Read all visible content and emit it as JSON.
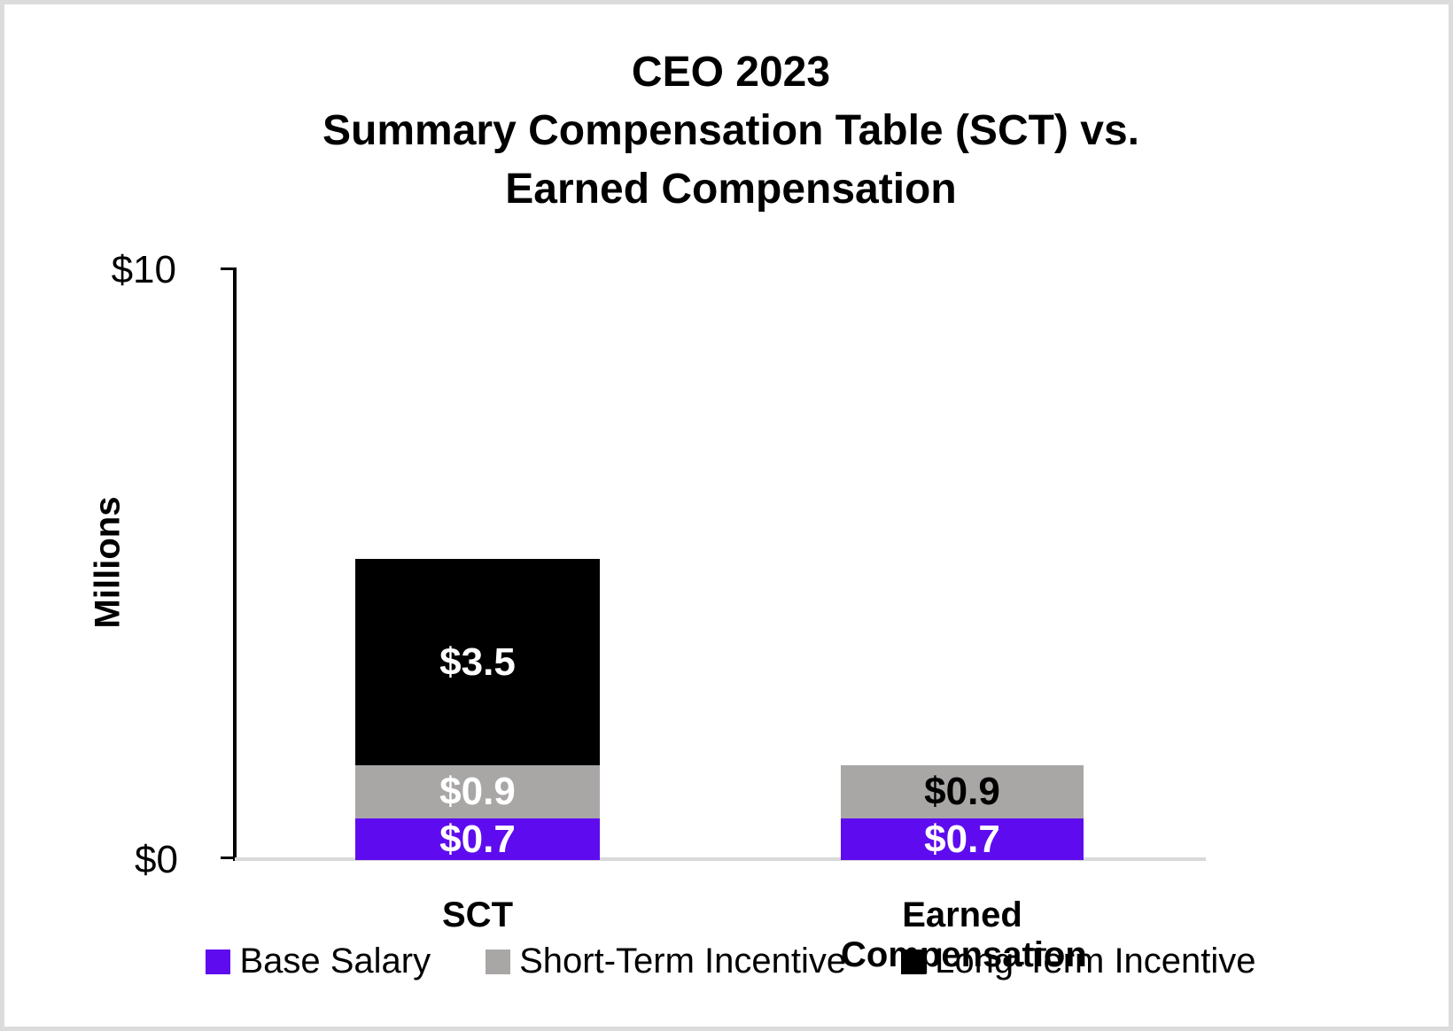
{
  "page": {
    "background": "#FFFFFF",
    "border_color": "#DCDCDC"
  },
  "chart_data": {
    "type": "bar",
    "stacked": true,
    "title_lines": [
      "CEO 2023",
      "Summary Compensation Table (SCT) vs.",
      "Earned Compensation"
    ],
    "ylabel": "Millions",
    "xlabel": "",
    "ylim": [
      0,
      10
    ],
    "yticks": [
      {
        "value": 0,
        "label": "$0"
      },
      {
        "value": 10,
        "label": "$10"
      }
    ],
    "grid": false,
    "legend_position": "bottom",
    "axis_color": "#000000",
    "baseline_color": "#D9D9D9",
    "categories": [
      "SCT",
      "Earned Compensation"
    ],
    "series": [
      {
        "name": "Base Salary",
        "color": "#5E0CEF",
        "values": [
          0.7,
          0.7
        ],
        "data_labels": [
          "$0.7",
          "$0.7"
        ],
        "label_colors": [
          "#FFFFFF",
          "#FFFFFF"
        ]
      },
      {
        "name": "Short-Term Incentive",
        "color": "#A9A6A6",
        "values": [
          0.9,
          0.9
        ],
        "data_labels": [
          "$0.9",
          "$0.9"
        ],
        "label_colors": [
          "#FFFFFF",
          "#000000"
        ]
      },
      {
        "name": "Long-Term Incentive",
        "color": "#000000",
        "values": [
          3.5,
          0
        ],
        "data_labels": [
          "$3.5",
          ""
        ],
        "label_colors": [
          "#FFFFFF",
          "#FFFFFF"
        ]
      }
    ]
  }
}
